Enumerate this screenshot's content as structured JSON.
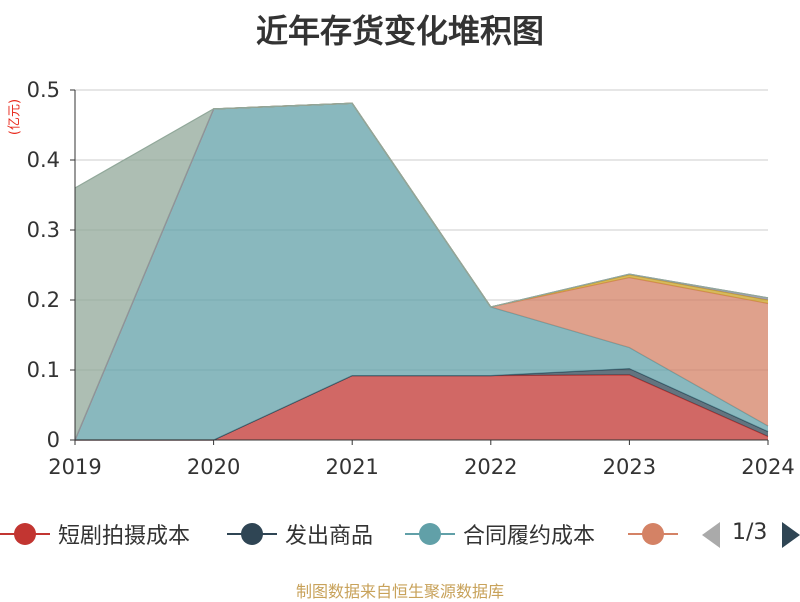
{
  "chart_data": {
    "type": "area",
    "title": "近年存货变化堆积图",
    "unit_label": "(亿元)",
    "categories": [
      "2019",
      "2020",
      "2021",
      "2022",
      "2023",
      "2024"
    ],
    "y_ticks": [
      "0",
      "0.1",
      "0.2",
      "0.3",
      "0.4",
      "0.5"
    ],
    "ylim": [
      0,
      0.5
    ],
    "grid": true,
    "stacked": true,
    "series": [
      {
        "name": "短剧拍摄成本",
        "color": "#c23531",
        "values": [
          0,
          0,
          0.092,
          0.092,
          0.093,
          0.005
        ]
      },
      {
        "name": "发出商品",
        "color": "#2f4554",
        "values": [
          0,
          0,
          0,
          0,
          0.009,
          0.007
        ]
      },
      {
        "name": "合同履约成本",
        "color": "#61a0a8",
        "values": [
          0,
          0.473,
          0.389,
          0.098,
          0.03,
          0.008
        ]
      },
      {
        "name": "",
        "color": "#d48265",
        "values": [
          0,
          0,
          0,
          0,
          0.1,
          0.175
        ]
      },
      {
        "color": "#c9a227",
        "values": [
          0,
          0,
          0,
          0,
          0.004,
          0.005
        ]
      },
      {
        "color": "#8a87a6",
        "values": [
          0,
          0,
          0,
          0,
          0.001,
          0.003
        ]
      },
      {
        "color": "#91a89a",
        "values": [
          0.36,
          0,
          0,
          0,
          0,
          0
        ]
      }
    ],
    "legend": {
      "position": "bottom",
      "page": "1/3"
    }
  },
  "footer": {
    "source": "制图数据来自恒生聚源数据库"
  }
}
